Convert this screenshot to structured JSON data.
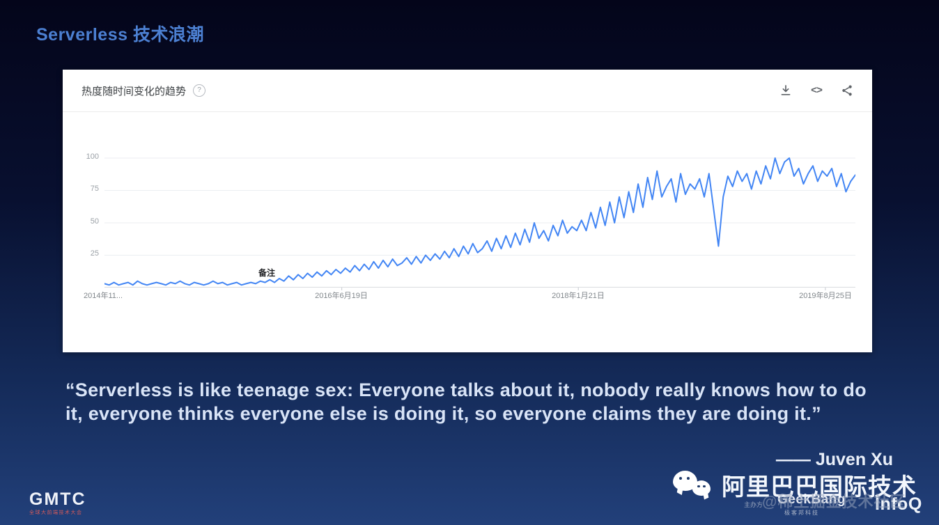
{
  "slide": {
    "title": "Serverless 技术浪潮",
    "quote": {
      "line1": "“Serverless is like teenage sex: Everyone talks about it, nobody really knows how to do",
      "line2": "it, everyone thinks everyone else is doing it, so everyone claims they are doing it.”"
    },
    "attribution": "—— Juven Xu",
    "brand_text": "阿里巴巴国际技术",
    "watermark": "@稀土掘金技术社区"
  },
  "trends_card": {
    "header": {
      "title": "热度随时间变化的趋势",
      "help_glyph": "?"
    },
    "actions": {
      "download_icon": "download-icon",
      "embed_icon": "embed-icon",
      "embed_glyph": "<>",
      "share_icon": "share-icon"
    }
  },
  "footer": {
    "gmtc_logo": "GMTC",
    "gmtc_subtitle": "全球大前端技术大会",
    "host_label": "主办方",
    "geekbang_logo": "GeekBang",
    "geekbang_label": "极客邦科技",
    "infoq_logo": "InfoQ"
  },
  "colors": {
    "background_top": "#04051a",
    "background_bottom": "#22407a",
    "title_blue": "#4c80d2",
    "card_bg": "#ffffff",
    "line_blue": "#4285f4",
    "gridline": "#ebeef1",
    "axis_label": "#9aa0a6",
    "quote_text": "#d9e4f7"
  },
  "chart_data": {
    "type": "line",
    "title": "热度随时间变化的趋势",
    "annotation": "备注",
    "x_tick_labels": [
      "2014年11...",
      "2016年6月19日",
      "2018年1月21日",
      "2019年8月25日"
    ],
    "y_tick_labels": [
      "100",
      "75",
      "50",
      "25"
    ],
    "y_ticks": [
      100,
      75,
      50,
      25
    ],
    "ylim": [
      0,
      100
    ],
    "grid": "horizontal",
    "line_color": "#4285f4",
    "legend": "none",
    "series": [
      {
        "name": "serverless",
        "values": [
          3,
          2,
          4,
          2,
          3,
          4,
          2,
          5,
          3,
          2,
          3,
          4,
          3,
          2,
          4,
          3,
          5,
          3,
          2,
          4,
          3,
          2,
          3,
          5,
          3,
          4,
          2,
          3,
          4,
          2,
          3,
          4,
          3,
          5,
          4,
          6,
          4,
          7,
          5,
          9,
          6,
          10,
          7,
          11,
          8,
          12,
          9,
          13,
          10,
          14,
          11,
          15,
          12,
          17,
          13,
          18,
          14,
          20,
          15,
          21,
          16,
          22,
          17,
          19,
          23,
          18,
          24,
          19,
          25,
          21,
          26,
          22,
          28,
          23,
          30,
          24,
          32,
          26,
          34,
          27,
          30,
          36,
          28,
          38,
          30,
          40,
          31,
          42,
          33,
          45,
          35,
          50,
          38,
          44,
          36,
          48,
          40,
          52,
          42,
          47,
          44,
          52,
          44,
          58,
          46,
          62,
          48,
          66,
          50,
          70,
          54,
          74,
          58,
          80,
          62,
          85,
          68,
          90,
          70,
          78,
          84,
          66,
          88,
          72,
          80,
          76,
          84,
          70,
          88,
          60,
          32,
          70,
          86,
          78,
          90,
          82,
          88,
          76,
          90,
          80,
          94,
          84,
          100,
          88,
          97,
          100,
          86,
          92,
          80,
          88,
          94,
          82,
          90,
          86,
          92,
          78,
          88,
          74,
          82,
          87
        ]
      }
    ]
  }
}
